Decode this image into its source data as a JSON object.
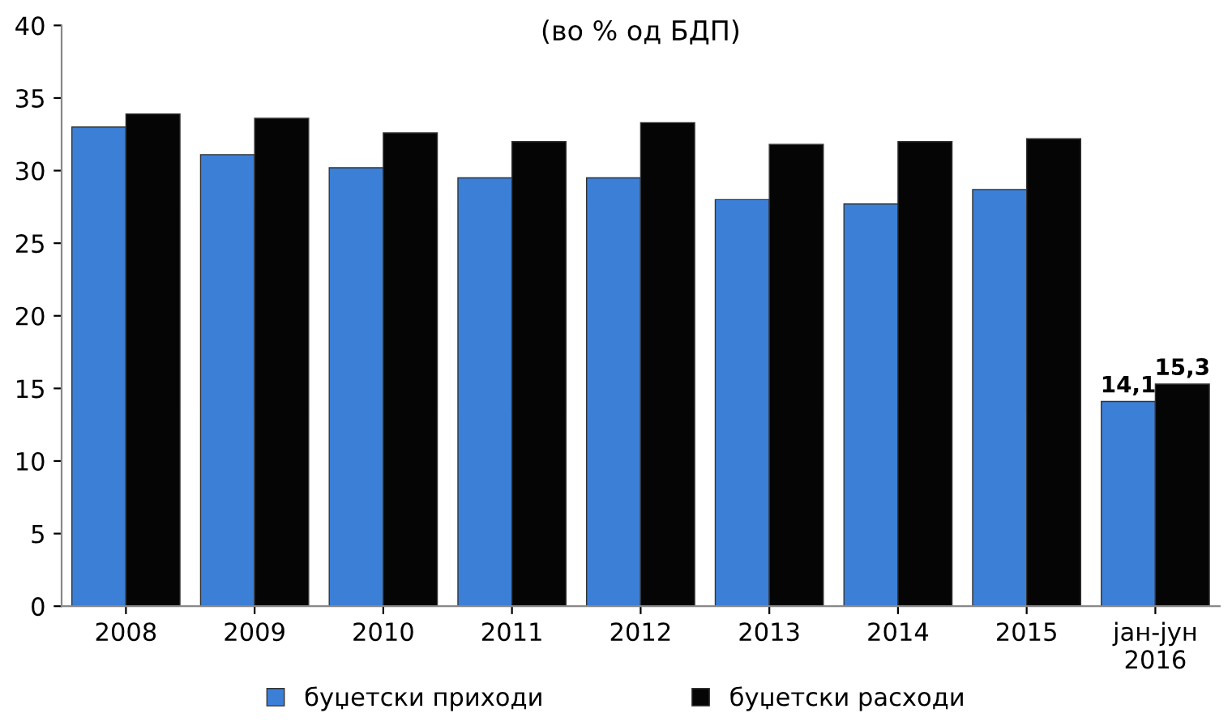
{
  "chart_data": {
    "type": "bar",
    "title": "(во % од БДП)",
    "categories": [
      "2008",
      "2009",
      "2010",
      "2011",
      "2012",
      "2013",
      "2014",
      "2015",
      "јан-јун\n2016"
    ],
    "series": [
      {
        "name": "буџетски приходи",
        "color": "#3c7fd6",
        "values": [
          33.0,
          31.1,
          30.2,
          29.5,
          29.5,
          28.0,
          27.7,
          28.7,
          14.1
        ],
        "value_labels": [
          null,
          null,
          null,
          null,
          null,
          null,
          null,
          null,
          "14,1"
        ]
      },
      {
        "name": "буџетски расходи",
        "color": "#050505",
        "values": [
          33.9,
          33.6,
          32.6,
          32.0,
          33.3,
          31.8,
          32.0,
          32.2,
          15.3
        ],
        "value_labels": [
          null,
          null,
          null,
          null,
          null,
          null,
          null,
          null,
          "15,3"
        ]
      }
    ],
    "ylim": [
      0,
      40
    ],
    "yticks": [
      0,
      5,
      10,
      15,
      20,
      25,
      30,
      35,
      40
    ],
    "grid": false,
    "legend": "bottom"
  }
}
